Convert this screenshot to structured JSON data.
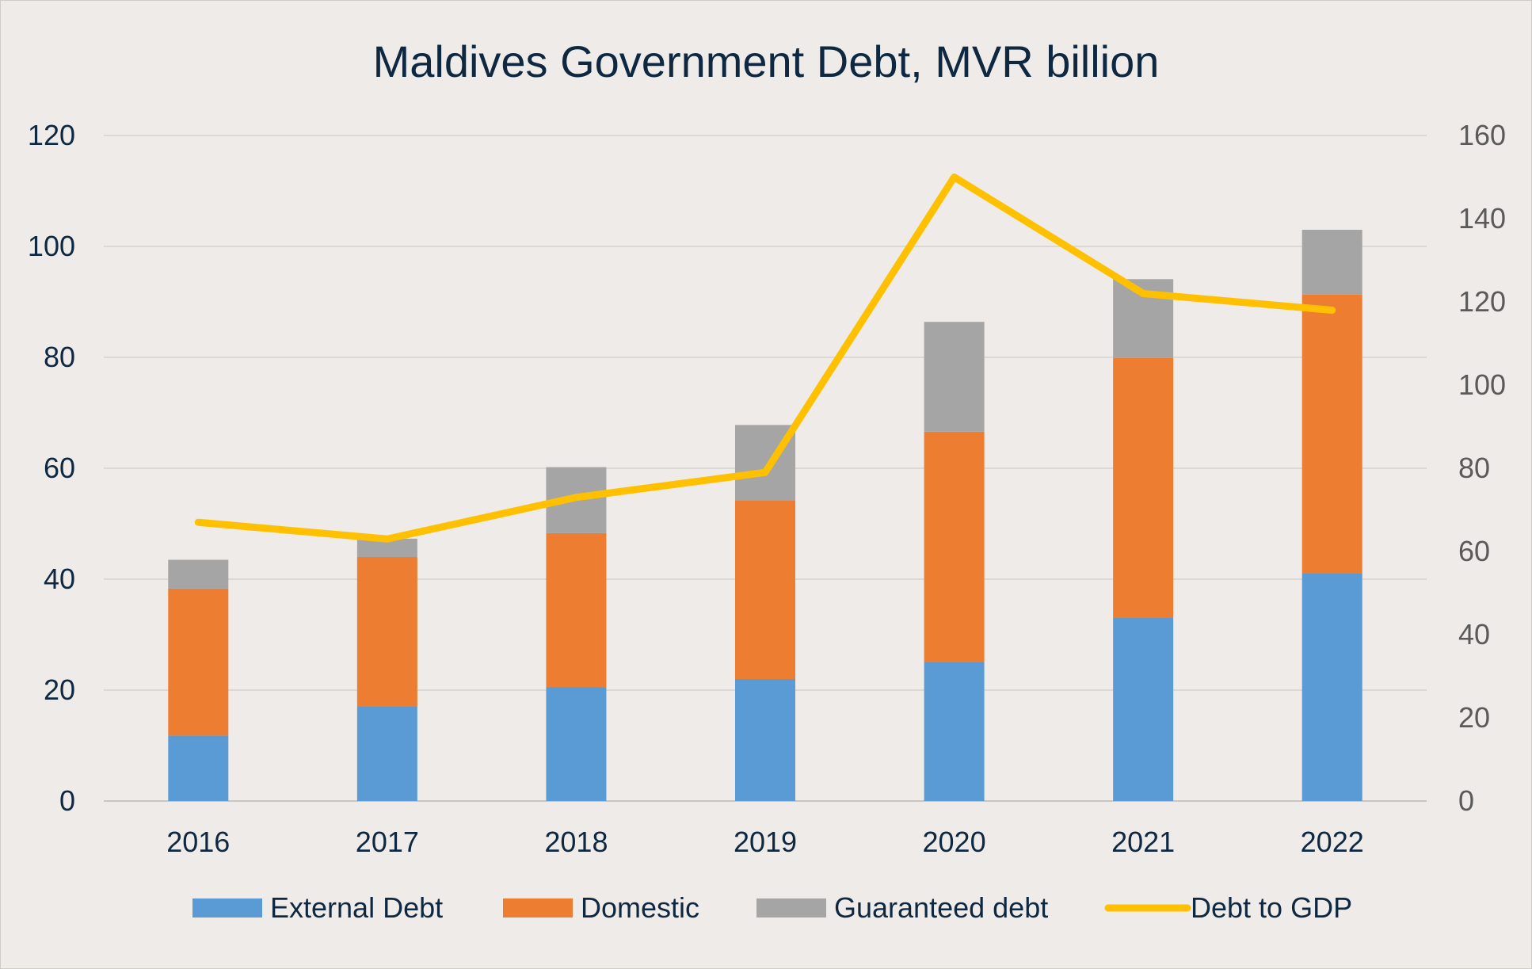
{
  "chart_data": {
    "type": "bar",
    "subtype": "stacked-bar-with-line",
    "title": "Maldives Government Debt, MVR billion",
    "categories": [
      "2016",
      "2017",
      "2018",
      "2019",
      "2020",
      "2021",
      "2022"
    ],
    "series": [
      {
        "name": "External Debt",
        "type": "bar",
        "axis": "left",
        "color": "#5b9bd5",
        "values": [
          11.8,
          17.0,
          20.5,
          22.0,
          25.0,
          33.0,
          41.0
        ]
      },
      {
        "name": "Domestic",
        "type": "bar",
        "axis": "left",
        "color": "#ed7d31",
        "values": [
          26.5,
          27.0,
          27.8,
          32.2,
          41.6,
          46.9,
          50.3
        ]
      },
      {
        "name": "Guaranteed debt",
        "type": "bar",
        "axis": "left",
        "color": "#a5a5a5",
        "values": [
          5.2,
          3.3,
          11.9,
          13.6,
          19.8,
          14.2,
          11.7
        ]
      },
      {
        "name": "Debt to GDP",
        "type": "line",
        "axis": "right",
        "color": "#ffc000",
        "values": [
          67,
          63,
          73,
          79,
          150,
          122,
          118
        ]
      }
    ],
    "y_left": {
      "min": 0,
      "max": 120,
      "ticks": [
        "0",
        "20",
        "40",
        "60",
        "80",
        "100",
        "120"
      ]
    },
    "y_right": {
      "min": 0,
      "max": 160,
      "ticks": [
        "0",
        "20",
        "40",
        "60",
        "80",
        "100",
        "120",
        "140",
        "160"
      ]
    },
    "grid": true,
    "legend_position": "bottom",
    "xlabel": "",
    "ylabel": ""
  }
}
